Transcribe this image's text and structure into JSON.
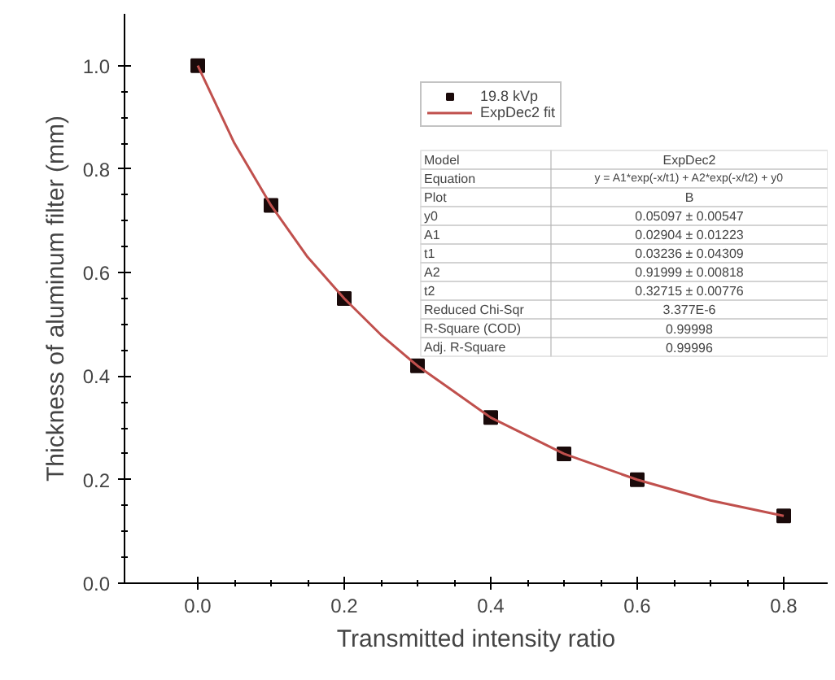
{
  "chart_data": {
    "type": "scatter",
    "xlabel": "Transmitted intensity ratio",
    "ylabel": "Thickness of aluminum filter (mm)",
    "xlim": [
      -0.1,
      0.86
    ],
    "ylim": [
      0,
      1.1
    ],
    "xticks": [
      {
        "value": 0,
        "label": "0.0"
      },
      0.2,
      0.4,
      0.6,
      0.8
    ],
    "yticks": [
      {
        "value": 0,
        "label": "0.0"
      },
      0.2,
      0.4,
      0.6,
      0.8,
      {
        "value": 1,
        "label": "1.0"
      }
    ],
    "grid": false,
    "legend": "top",
    "series": [
      {
        "name": "19.8 kVp",
        "marker": "square",
        "color": "#1a0a0a",
        "x": [
          0,
          0.1,
          0.2,
          0.3,
          0.4,
          0.5,
          0.6,
          0.8
        ],
        "values": [
          1.0,
          0.73,
          0.55,
          0.42,
          0.32,
          0.25,
          0.2,
          0.13
        ]
      },
      {
        "name": "ExpDec2 fit",
        "type": "line",
        "color": "#c0504d",
        "x": [
          0,
          0.05,
          0.1,
          0.15,
          0.2,
          0.25,
          0.3,
          0.35,
          0.4,
          0.5,
          0.6,
          0.7,
          0.8
        ],
        "values": [
          1.0,
          0.85,
          0.73,
          0.63,
          0.55,
          0.48,
          0.42,
          0.37,
          0.32,
          0.25,
          0.2,
          0.16,
          0.13
        ]
      }
    ],
    "annotations": [
      "Model",
      "ExpDec2",
      "Equation",
      "y = A1*exp(-x/t1) + A2*exp(-x/t2) + y0",
      "Plot",
      "B",
      "y0",
      "0.05097 ± 0.00547",
      "A1",
      "0.02904 ± 0.01223",
      "t1",
      "0.03236 ± 0.04309",
      "A2",
      "0.91999 ± 0.00818",
      "t2",
      "0.32715 ± 0.00776",
      "Reduced Chi-Sqr",
      "3.377E-6",
      "R-Square (COD)",
      "0.99998",
      "Adj. R-Square",
      "0.99996"
    ]
  }
}
